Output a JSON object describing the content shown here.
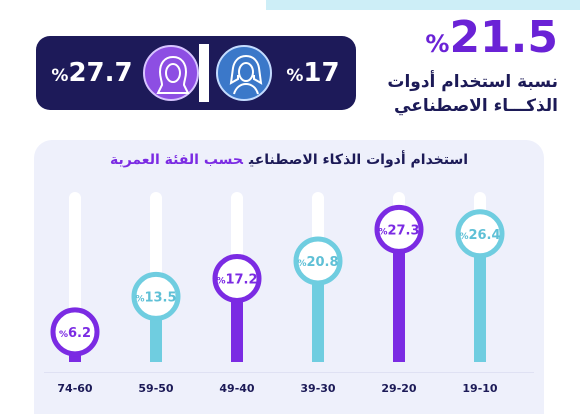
{
  "headline": {
    "value": "21.5",
    "unit": "%",
    "caption_line1": "نسبة استخدام أدوات",
    "caption_line2": "الذكـــاء الاصطناعي"
  },
  "gender": {
    "female": {
      "value": "27.7",
      "unit": "%",
      "icon": "woman-hijab-icon"
    },
    "male": {
      "value": "17",
      "unit": "%",
      "icon": "man-ghutra-icon"
    }
  },
  "colors": {
    "navy": "#1d1a59",
    "purple": "#7b2be3",
    "teal": "#6fcde0"
  },
  "chart_data": {
    "type": "bar",
    "title": "استخدام أدوات الذكاء الاصطناعي",
    "subtitle": "حسب الفئة العمرية",
    "categories": [
      "19-10",
      "29-20",
      "39-30",
      "49-40",
      "59-50",
      "74-60"
    ],
    "values": [
      26.4,
      27.3,
      20.8,
      17.2,
      13.5,
      6.2
    ],
    "value_labels": [
      "26.4",
      "27.3",
      "20.8",
      "17.2",
      "13.5",
      "6.2"
    ],
    "unit": "%",
    "ylim": [
      0,
      35
    ],
    "bar_colors": [
      "#6fcde0",
      "#7b2be3",
      "#6fcde0",
      "#7b2be3",
      "#6fcde0",
      "#7b2be3"
    ],
    "xlabel": "",
    "ylabel": ""
  }
}
